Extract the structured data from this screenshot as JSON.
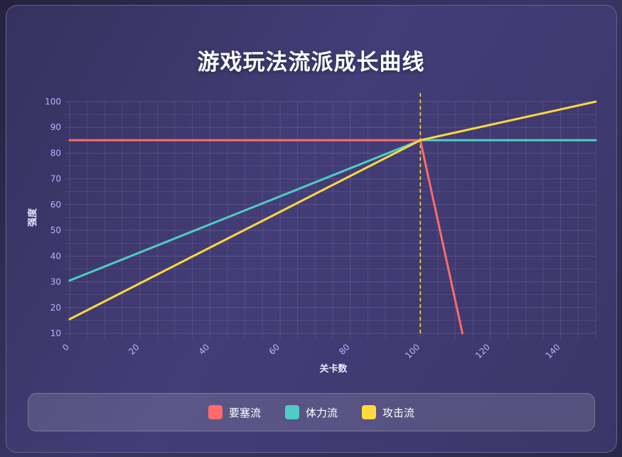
{
  "title": "游戏玩法流派成长曲线",
  "colors": {
    "fortress": "#ff6b6b",
    "stamina": "#4ecdc4",
    "attack": "#ffd93d",
    "grid": "rgba(255,255,255,0.12)",
    "tick": "#b9b3ff",
    "axis_label": "#e8e6ff"
  },
  "chart_data": {
    "type": "line",
    "title": "",
    "xlabel": "关卡数",
    "ylabel": "强度",
    "xlim": [
      0,
      150
    ],
    "ylim": [
      10,
      100
    ],
    "xticks": [
      "0",
      "20",
      "40",
      "60",
      "80",
      "100",
      "120",
      "140"
    ],
    "yticks": [
      "10",
      "20",
      "30",
      "40",
      "50",
      "60",
      "70",
      "80",
      "90",
      "100"
    ],
    "grid": true,
    "legend": "bottom",
    "series": [
      {
        "name": "要塞流",
        "color_key": "fortress",
        "points": [
          [
            0,
            85
          ],
          [
            100,
            85
          ],
          [
            112,
            10
          ]
        ]
      },
      {
        "name": "体力流",
        "color_key": "stamina",
        "points": [
          [
            0,
            30.5
          ],
          [
            100,
            85
          ],
          [
            150,
            85
          ]
        ]
      },
      {
        "name": "攻击流",
        "color_key": "attack",
        "points": [
          [
            0,
            15.5
          ],
          [
            100,
            85
          ],
          [
            150,
            100
          ]
        ]
      }
    ],
    "annotations": [
      {
        "type": "vertical-dashed-line",
        "x": 100,
        "color_key": "attack"
      }
    ]
  }
}
